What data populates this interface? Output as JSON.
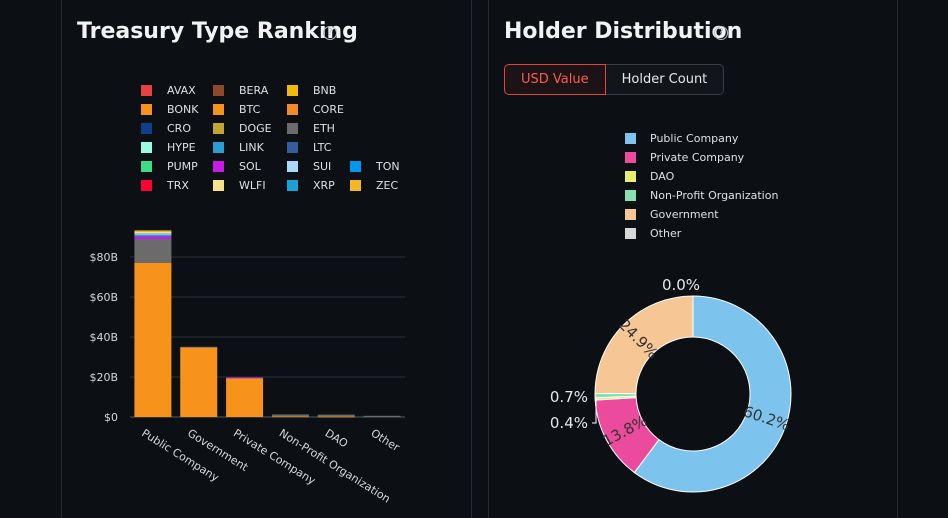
{
  "left": {
    "title": "Treasury Type Ranking",
    "help_icon": "?",
    "legend": [
      {
        "label": "AVAX",
        "color": "#e84142"
      },
      {
        "label": "BERA",
        "color": "#8b4b28"
      },
      {
        "label": "BNB",
        "color": "#f0b90b"
      },
      {
        "label": "BONK",
        "color": "#f7931a"
      },
      {
        "label": "BTC",
        "color": "#f7931a"
      },
      {
        "label": "CORE",
        "color": "#f28c28"
      },
      {
        "label": "CRO",
        "color": "#103f8c"
      },
      {
        "label": "DOGE",
        "color": "#c2a633"
      },
      {
        "label": "ETH",
        "color": "#6b6b6b"
      },
      {
        "label": "HYPE",
        "color": "#97fce4"
      },
      {
        "label": "LINK",
        "color": "#2a9fd6"
      },
      {
        "label": "LTC",
        "color": "#345d9d"
      },
      {
        "label": "PUMP",
        "color": "#3ddc84"
      },
      {
        "label": "SOL",
        "color": "#c91be8"
      },
      {
        "label": "SUI",
        "color": "#a9d8f8"
      },
      {
        "label": "TON",
        "color": "#0098ea"
      },
      {
        "label": "TRX",
        "color": "#ff0032"
      },
      {
        "label": "WLFI",
        "color": "#f6e28b"
      },
      {
        "label": "XRP",
        "color": "#1aa1dc"
      },
      {
        "label": "ZEC",
        "color": "#f4b728"
      }
    ]
  },
  "right": {
    "title": "Holder Distribution",
    "help_icon": "?",
    "buttons": {
      "usd_value": "USD Value",
      "holder_count": "Holder Count"
    },
    "legend": [
      {
        "label": "Public Company",
        "color": "#7cc4ee"
      },
      {
        "label": "Private Company",
        "color": "#ec4a9c"
      },
      {
        "label": "DAO",
        "color": "#e8ef6e"
      },
      {
        "label": "Non-Profit Organization",
        "color": "#86e0b0"
      },
      {
        "label": "Government",
        "color": "#f6c794"
      },
      {
        "label": "Other",
        "color": "#d8d8d8"
      }
    ]
  },
  "chart_data": [
    {
      "type": "bar",
      "stacked": true,
      "title": "Treasury Type Ranking",
      "categories": [
        "Public Company",
        "Government",
        "Private Company",
        "Non-Profit Organization",
        "DAO",
        "Other"
      ],
      "yticks": [
        "$0",
        "$20B",
        "$40B",
        "$60B",
        "$80B"
      ],
      "ylim": [
        0,
        100
      ],
      "series": [
        {
          "name": "BTC",
          "color": "#f7931a",
          "values": [
            77,
            35,
            19.5,
            0.3,
            0.2,
            0
          ]
        },
        {
          "name": "ETH",
          "color": "#6b6b6b",
          "values": [
            12,
            0.1,
            0.2,
            1,
            1,
            0.6
          ]
        },
        {
          "name": "SOL",
          "color": "#c91be8",
          "values": [
            1.3,
            0,
            0.1,
            0,
            0,
            0
          ]
        },
        {
          "name": "LINK",
          "color": "#2a9fd6",
          "values": [
            0.8,
            0,
            0,
            0,
            0,
            0
          ]
        },
        {
          "name": "SUI",
          "color": "#a9d8f8",
          "values": [
            0.8,
            0,
            0,
            0,
            0,
            0
          ]
        },
        {
          "name": "WLFI",
          "color": "#f6e28b",
          "values": [
            0.8,
            0,
            0,
            0,
            0,
            0
          ]
        },
        {
          "name": "BNB",
          "color": "#f0b90b",
          "values": [
            0.6,
            0,
            0,
            0,
            0,
            0
          ]
        }
      ]
    },
    {
      "type": "pie",
      "donut": true,
      "title": "Holder Distribution",
      "labels": [
        "Public Company",
        "Private Company",
        "DAO",
        "Non-Profit Organization",
        "Government",
        "Other"
      ],
      "values": [
        60.2,
        13.8,
        0.4,
        0.7,
        24.9,
        0.0
      ],
      "colors": [
        "#7cc4ee",
        "#ec4a9c",
        "#e8ef6e",
        "#86e0b0",
        "#f6c794",
        "#d8d8d8"
      ],
      "data_labels": [
        "60.2%",
        "13.8%",
        "0.4%",
        "0.7%",
        "24.9%",
        "0.0%"
      ]
    }
  ]
}
